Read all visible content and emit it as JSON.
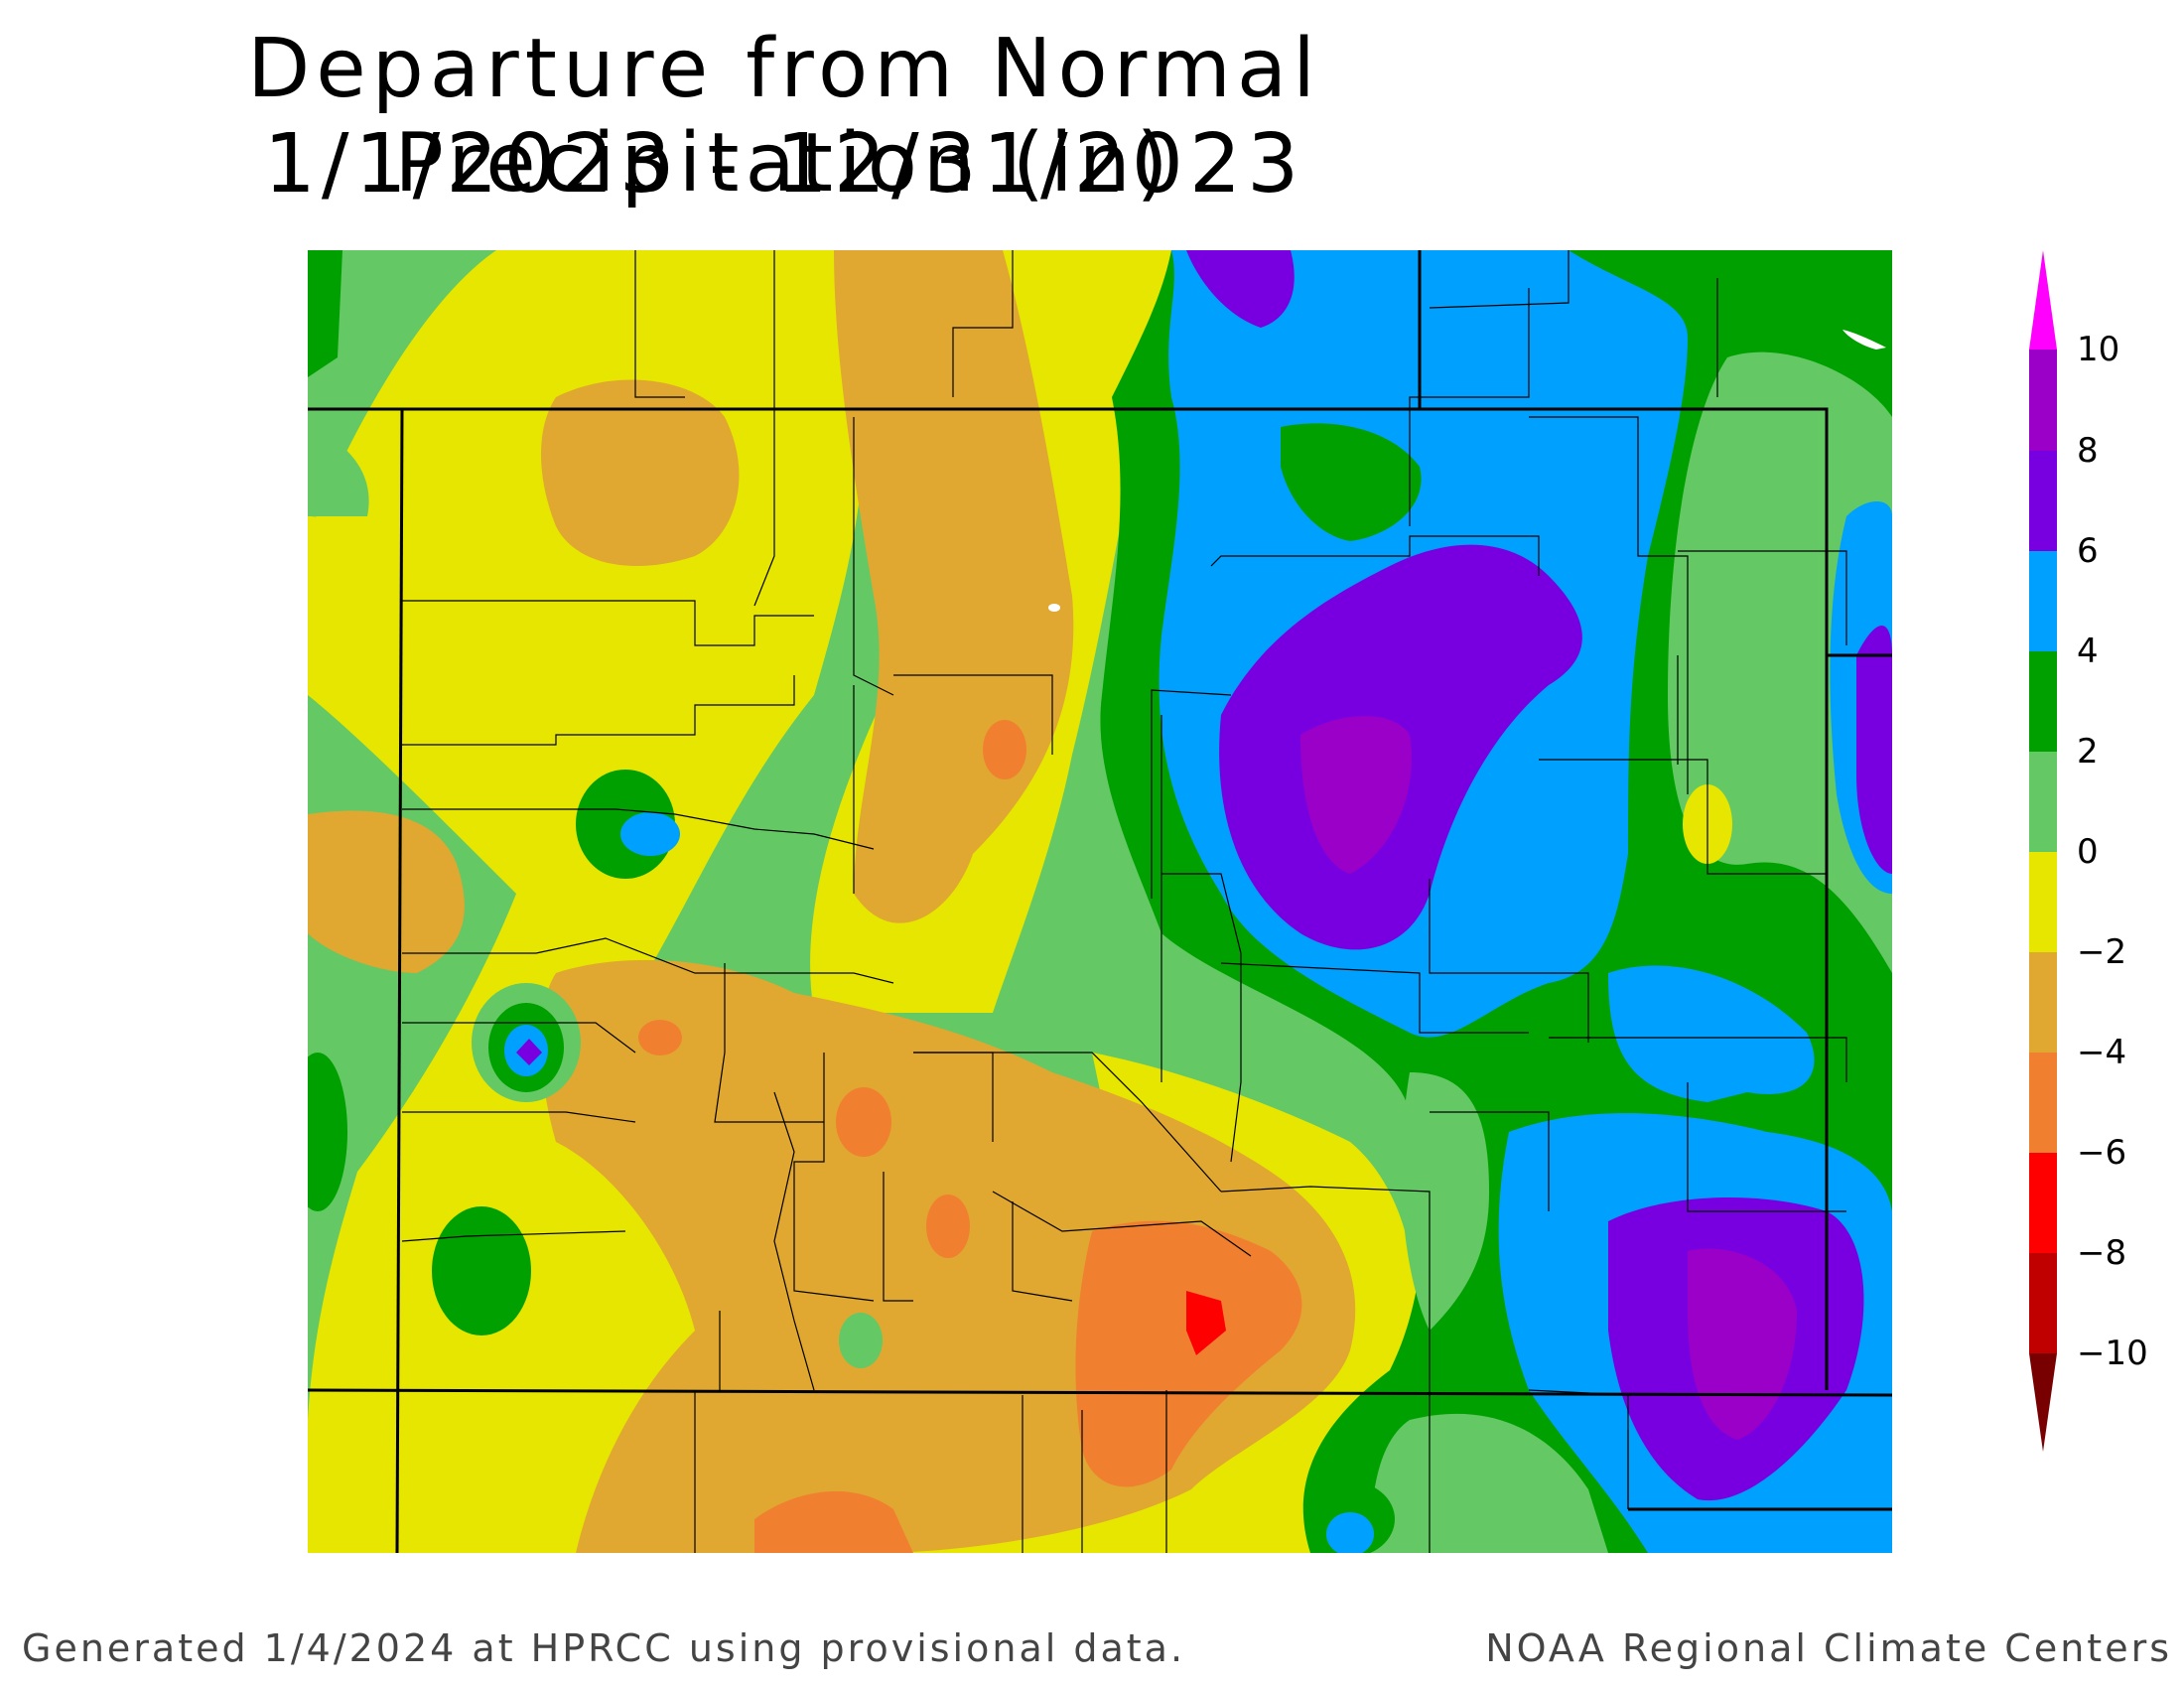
{
  "title": {
    "line1": "Departure from Normal Precipitation (in)",
    "line2": "1/1/2023 - 12/31/2023"
  },
  "legend": {
    "labels": [
      "10",
      "8",
      "6",
      "4",
      "2",
      "0",
      "−2",
      "−4",
      "−6",
      "−8",
      "−10"
    ],
    "bins": [
      {
        "range": "> 10",
        "color": "#ff00ff"
      },
      {
        "range": "8 to 10",
        "color": "#9b00c8"
      },
      {
        "range": "6 to 8",
        "color": "#7800e0"
      },
      {
        "range": "4 to 6",
        "color": "#00a0ff"
      },
      {
        "range": "2 to 4",
        "color": "#00a000"
      },
      {
        "range": "0 to 2",
        "color": "#64c864"
      },
      {
        "range": "-2 to 0",
        "color": "#e6e600"
      },
      {
        "range": "-4 to -2",
        "color": "#e0a830"
      },
      {
        "range": "-6 to -4",
        "color": "#f08030"
      },
      {
        "range": "-8 to -6",
        "color": "#ff0000"
      },
      {
        "range": "-10 to -8",
        "color": "#c00000"
      },
      {
        "range": "< -10",
        "color": "#780000"
      }
    ]
  },
  "footer": {
    "left": "Generated 1/4/2024 at HPRCC using provisional data.",
    "right": "NOAA Regional Climate Centers"
  }
}
